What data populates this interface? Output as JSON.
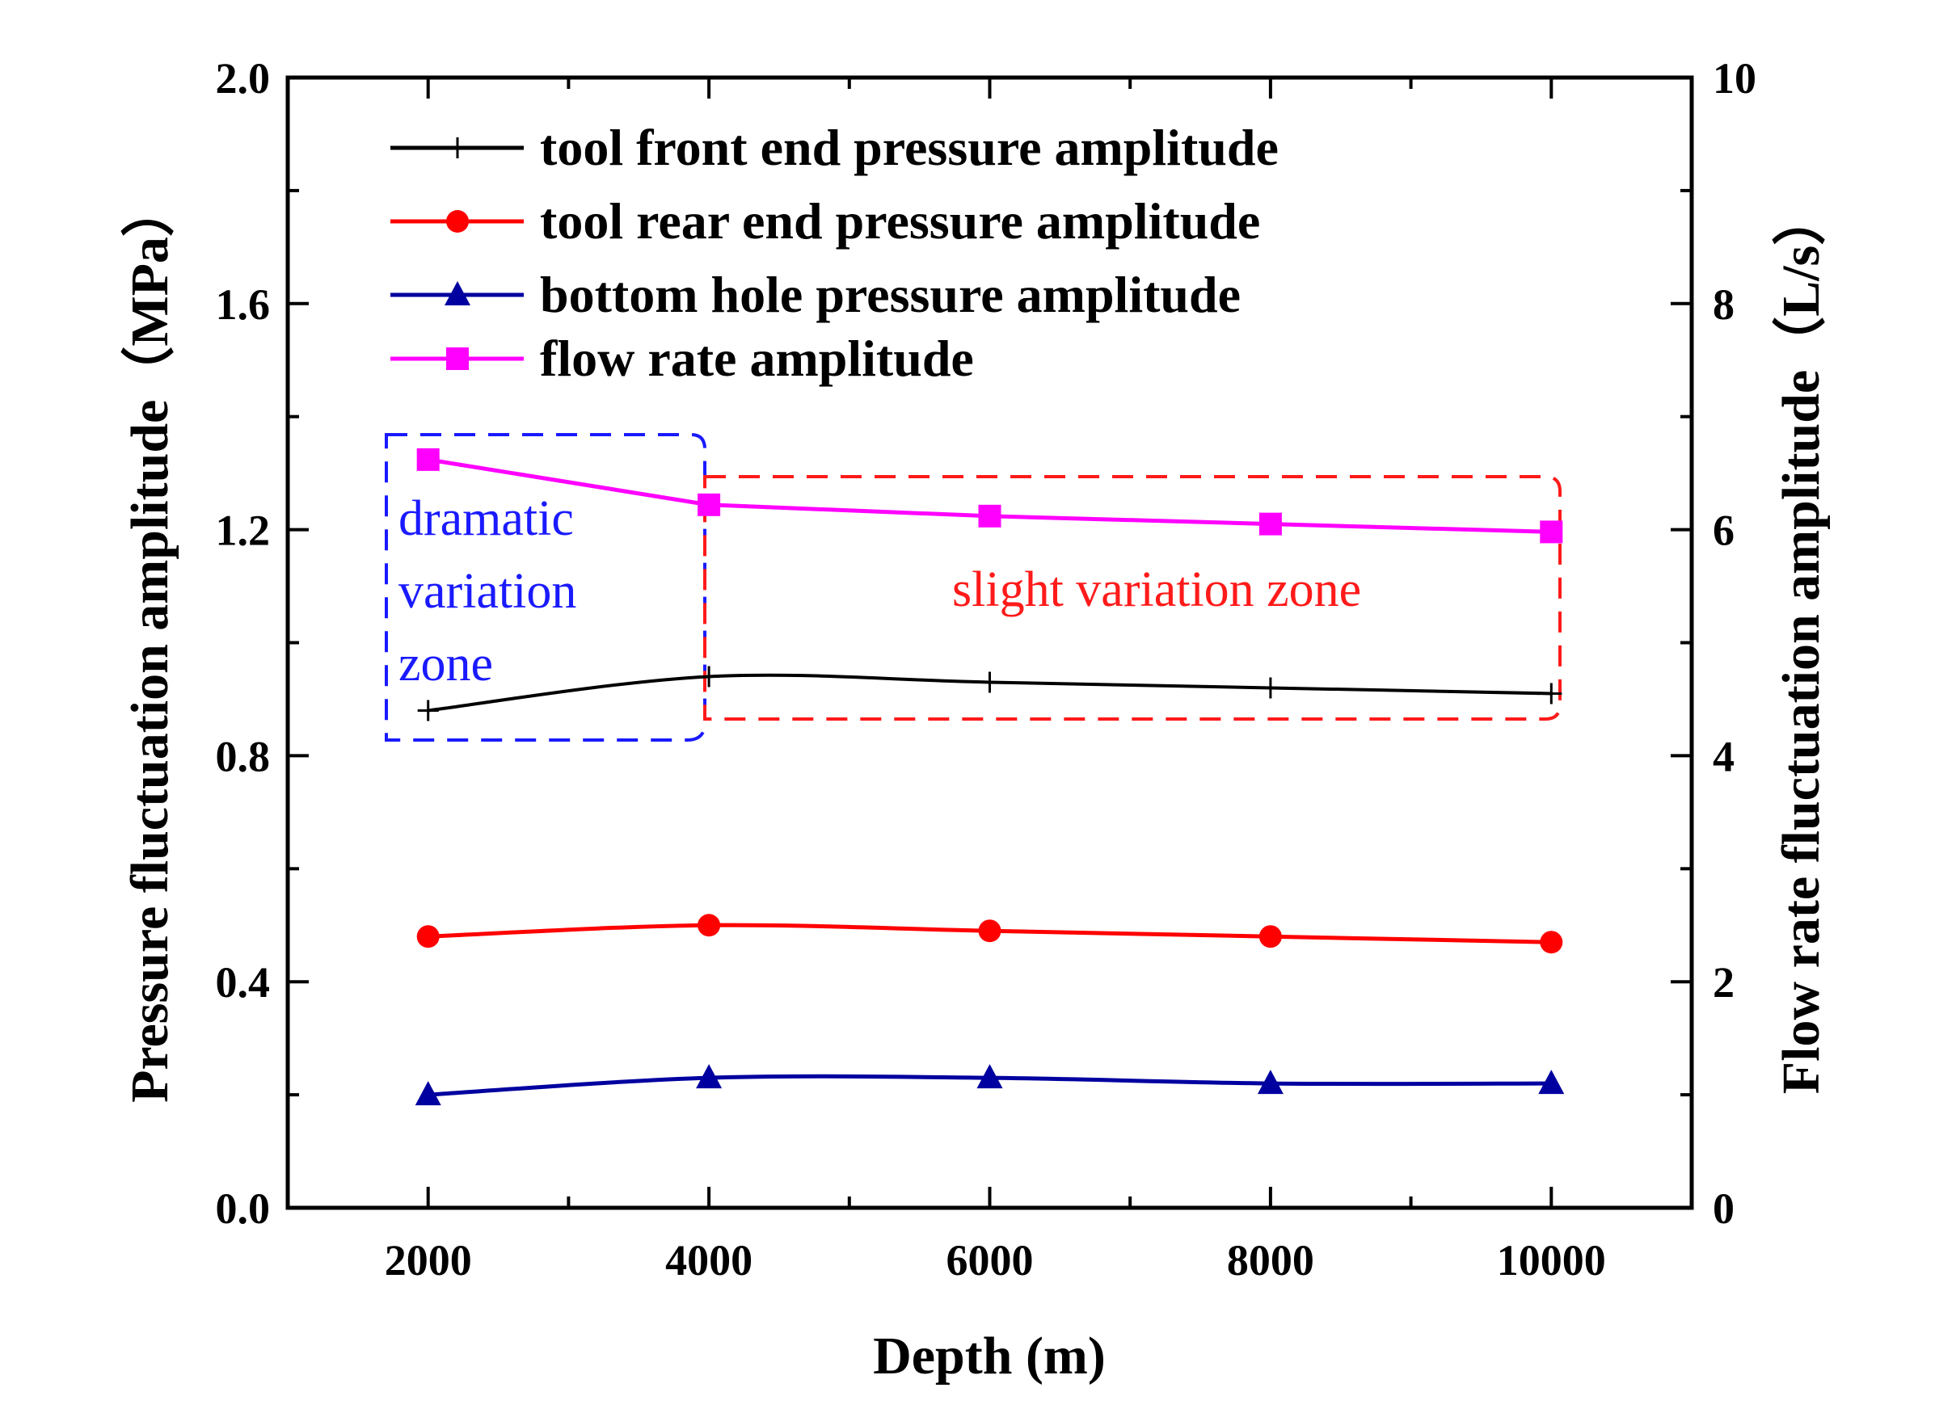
{
  "chart_data": {
    "type": "line",
    "xlabel": "Depth (m)",
    "ylabel": "Pressure fluctuation amplitude（MPa）",
    "y2label": "Flow rate fluctuation amplitude（L/s）",
    "x": [
      2000,
      4000,
      6000,
      8000,
      10000
    ],
    "xlim": [
      1000,
      11000
    ],
    "ylim": [
      0,
      2.0
    ],
    "y2lim": [
      0,
      10
    ],
    "xticks": [
      "2000",
      "4000",
      "6000",
      "8000",
      "10000"
    ],
    "yticks": [
      "0.0",
      "0.4",
      "0.8",
      "1.2",
      "1.6",
      "2.0"
    ],
    "y2ticks": [
      "0",
      "2",
      "4",
      "6",
      "8",
      "10"
    ],
    "legend_position": "top-left",
    "series": [
      {
        "name": "tool front end pressure amplitude",
        "axis": "left",
        "marker": "plus",
        "color": "#000000",
        "values": [
          0.88,
          0.94,
          0.93,
          0.92,
          0.91
        ]
      },
      {
        "name": "tool rear end pressure amplitude",
        "axis": "left",
        "marker": "circle",
        "color": "#ff0000",
        "values": [
          0.48,
          0.5,
          0.49,
          0.48,
          0.47
        ]
      },
      {
        "name": "bottom hole pressure amplitude",
        "axis": "left",
        "marker": "triangle",
        "color": "#0000a0",
        "values": [
          0.2,
          0.23,
          0.23,
          0.22,
          0.22
        ]
      },
      {
        "name": "flow rate amplitude",
        "axis": "right",
        "marker": "square",
        "color": "#ff00ff",
        "values": [
          6.62,
          6.22,
          6.12,
          6.05,
          5.98
        ]
      }
    ],
    "annotations": {
      "dramatic_zone": [
        "dramatic",
        "variation",
        "zone"
      ],
      "dramatic_color": "#1a1aff",
      "slight_zone": "slight variation zone",
      "slight_color": "#ff1a1a"
    }
  }
}
